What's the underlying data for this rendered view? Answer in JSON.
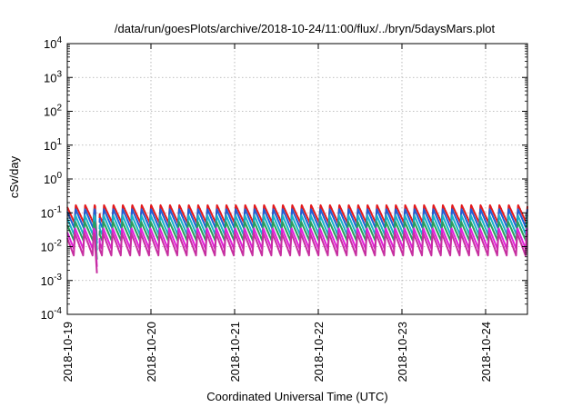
{
  "chart_data": {
    "type": "line",
    "title": "/data/run/goesPlots/archive/2018-10-24/11:00/flux/../bryn/5daysMars.plot",
    "xlabel": "Coordinated Universal Time (UTC)",
    "ylabel": "cSv/day",
    "xlim": [
      "2018-10-19 00:00",
      "2018-10-24 12:00"
    ],
    "ylim": [
      0.0001,
      10000
    ],
    "yscale": "log",
    "grid": true,
    "x_ticks": [
      "2018-10-19",
      "2018-10-20",
      "2018-10-21",
      "2018-10-22",
      "2018-10-23",
      "2018-10-24"
    ],
    "y_ticks": [
      {
        "value": 0.0001,
        "base": "10",
        "exp": "-4"
      },
      {
        "value": 0.001,
        "base": "10",
        "exp": "-3"
      },
      {
        "value": 0.01,
        "base": "10",
        "exp": "-2"
      },
      {
        "value": 0.1,
        "base": "10",
        "exp": "-1"
      },
      {
        "value": 1,
        "base": "10",
        "exp": "0"
      },
      {
        "value": 10,
        "base": "10",
        "exp": "1"
      },
      {
        "value": 100,
        "base": "10",
        "exp": "2"
      },
      {
        "value": 1000,
        "base": "10",
        "exp": "3"
      },
      {
        "value": 10000,
        "base": "10",
        "exp": "4"
      }
    ],
    "cycle_period_hours": 2.7,
    "gap_hours": [
      8.5,
      9.2
    ],
    "dip": {
      "start_hours": 8.0,
      "min_hours": 8.8,
      "recovered_hours": 9.3
    },
    "series": [
      {
        "color": "#e31a1c",
        "peak": 0.17,
        "trough": 0.05,
        "dip_min": 0.0055
      },
      {
        "color": "#1f5fd6",
        "peak": 0.13,
        "trough": 0.035,
        "dip_min": 0.0045
      },
      {
        "color": "#17b3c6",
        "peak": 0.085,
        "trough": 0.022,
        "dip_min": 0.0028
      },
      {
        "color": "#2a9d5c",
        "peak": 0.055,
        "trough": 0.015,
        "dip_min": 0.0013
      },
      {
        "color": "#e020d8",
        "peak": 0.035,
        "trough": 0.0085,
        "dip_min": 0.0008
      },
      {
        "color": "#c62fa0",
        "peak": 0.025,
        "trough": 0.0055,
        "dip_min": 0.0005
      }
    ]
  }
}
